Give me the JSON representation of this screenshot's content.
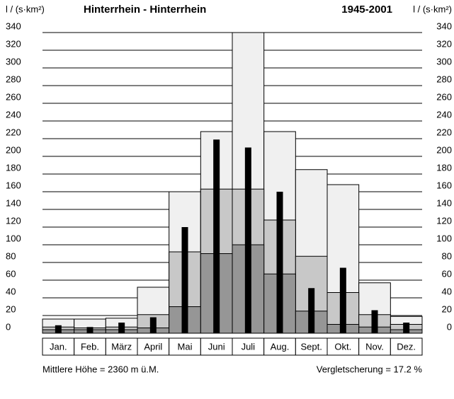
{
  "chart_data": {
    "type": "bar",
    "title": "Hinterrhein - Hinterrhein",
    "period": "1945-2001",
    "y_label": "l / (s·km²)",
    "y2_label": "l / (s·km²)",
    "footer_left": "Mittlere Höhe = 2360 m ü.M.",
    "footer_right": "Vergletscherung = 17.2 %",
    "categories": [
      "Jan.",
      "Feb.",
      "März",
      "April",
      "Mai",
      "Juni",
      "Juli",
      "Aug.",
      "Sept.",
      "Okt.",
      "Nov.",
      "Dez."
    ],
    "series": [
      {
        "color": "#f0f0f0",
        "values": [
          16,
          16,
          17,
          52,
          160,
          228,
          340,
          228,
          185,
          168,
          57,
          19
        ]
      },
      {
        "color": "#c8c8c8",
        "values": [
          7,
          6,
          7,
          21,
          92,
          163,
          163,
          128,
          87,
          46,
          21,
          10
        ]
      },
      {
        "color": "#969696",
        "values": [
          4,
          4,
          4,
          6,
          30,
          90,
          100,
          67,
          25,
          10,
          7,
          4
        ]
      },
      {
        "color": "#000000",
        "narrow": true,
        "values": [
          9,
          7,
          12,
          18,
          120,
          219,
          210,
          160,
          51,
          74,
          26,
          12
        ]
      }
    ],
    "ylim": [
      0,
      340
    ],
    "yticks": [
      0,
      20,
      40,
      60,
      80,
      100,
      120,
      140,
      160,
      180,
      200,
      220,
      240,
      260,
      280,
      300,
      320,
      340
    ],
    "grid": true
  }
}
